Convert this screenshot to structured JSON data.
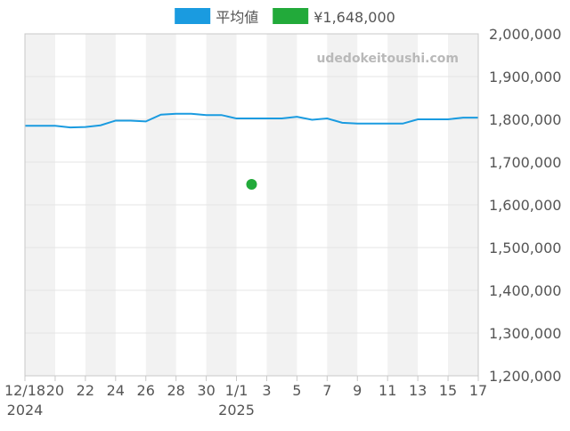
{
  "chart_data": {
    "type": "line",
    "title": "",
    "xlabel": "",
    "ylabel": "",
    "watermark": "udedokeitoushi.com",
    "legend_placement": "top-center",
    "ylim": [
      1200000,
      2000000
    ],
    "y_ticks": [
      {
        "value": 2000000,
        "label": "2,000,000"
      },
      {
        "value": 1900000,
        "label": "1,900,000"
      },
      {
        "value": 1800000,
        "label": "1,800,000"
      },
      {
        "value": 1700000,
        "label": "1,700,000"
      },
      {
        "value": 1600000,
        "label": "1,600,000"
      },
      {
        "value": 1500000,
        "label": "1,500,000"
      },
      {
        "value": 1400000,
        "label": "1,400,000"
      },
      {
        "value": 1300000,
        "label": "1,300,000"
      },
      {
        "value": 1200000,
        "label": "1,200,000"
      }
    ],
    "x": [
      "2024-12-18",
      "2024-12-19",
      "2024-12-20",
      "2024-12-21",
      "2024-12-22",
      "2024-12-23",
      "2024-12-24",
      "2024-12-25",
      "2024-12-26",
      "2024-12-27",
      "2024-12-28",
      "2024-12-29",
      "2024-12-30",
      "2024-12-31",
      "2025-01-01",
      "2025-01-02",
      "2025-01-03",
      "2025-01-04",
      "2025-01-05",
      "2025-01-06",
      "2025-01-07",
      "2025-01-08",
      "2025-01-09",
      "2025-01-10",
      "2025-01-11",
      "2025-01-12",
      "2025-01-13",
      "2025-01-14",
      "2025-01-15",
      "2025-01-16",
      "2025-01-17"
    ],
    "x_ticks": [
      {
        "date": "2024-12-18",
        "label": "12/18",
        "sub": "2024"
      },
      {
        "date": "2024-12-20",
        "label": "20",
        "sub": ""
      },
      {
        "date": "2024-12-22",
        "label": "22",
        "sub": ""
      },
      {
        "date": "2024-12-24",
        "label": "24",
        "sub": ""
      },
      {
        "date": "2024-12-26",
        "label": "26",
        "sub": ""
      },
      {
        "date": "2024-12-28",
        "label": "28",
        "sub": ""
      },
      {
        "date": "2024-12-30",
        "label": "30",
        "sub": ""
      },
      {
        "date": "2025-01-01",
        "label": "1/1",
        "sub": "2025"
      },
      {
        "date": "2025-01-03",
        "label": "3",
        "sub": ""
      },
      {
        "date": "2025-01-05",
        "label": "5",
        "sub": ""
      },
      {
        "date": "2025-01-07",
        "label": "7",
        "sub": ""
      },
      {
        "date": "2025-01-09",
        "label": "9",
        "sub": ""
      },
      {
        "date": "2025-01-11",
        "label": "11",
        "sub": ""
      },
      {
        "date": "2025-01-13",
        "label": "13",
        "sub": ""
      },
      {
        "date": "2025-01-15",
        "label": "15",
        "sub": ""
      },
      {
        "date": "2025-01-17",
        "label": "17",
        "sub": ""
      }
    ],
    "series": [
      {
        "name": "平均値",
        "type": "line",
        "color": "#1a9be0",
        "values": [
          1785000,
          1785000,
          1785000,
          1781000,
          1782000,
          1786000,
          1797000,
          1797000,
          1795000,
          1811000,
          1813000,
          1813000,
          1810000,
          1810000,
          1802000,
          1802000,
          1802000,
          1802000,
          1806000,
          1799000,
          1802000,
          1792000,
          1790000,
          1790000,
          1790000,
          1790000,
          1800000,
          1800000,
          1800000,
          1804000,
          1804000
        ]
      },
      {
        "name": "¥1,648,000",
        "type": "scatter",
        "color": "#22aa3a",
        "points": [
          {
            "x": "2025-01-02",
            "y": 1648000
          }
        ]
      }
    ],
    "grid": true,
    "band_color": "#f2f2f2"
  }
}
